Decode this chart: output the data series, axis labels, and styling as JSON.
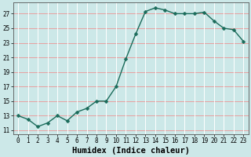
{
  "title": "",
  "xlabel": "Humidex (Indice chaleur)",
  "ylabel": "",
  "x": [
    0,
    1,
    2,
    3,
    4,
    5,
    6,
    7,
    8,
    9,
    10,
    11,
    12,
    13,
    14,
    15,
    16,
    17,
    18,
    19,
    20,
    21,
    22,
    23
  ],
  "y": [
    13.0,
    12.5,
    11.5,
    12.0,
    13.0,
    12.3,
    13.5,
    14.0,
    15.0,
    15.0,
    17.0,
    20.8,
    24.2,
    27.3,
    27.8,
    27.5,
    27.0,
    27.0,
    27.0,
    27.2,
    26.0,
    25.0,
    24.8,
    23.2
  ],
  "line_color": "#1a6b5a",
  "marker": "D",
  "marker_size": 2.5,
  "bg_color": "#cce8e8",
  "hgrid_color": "#e8a0a0",
  "vgrid_color": "#ffffff",
  "ylim": [
    10.5,
    28.5
  ],
  "xlim": [
    -0.5,
    23.5
  ],
  "yticks": [
    11,
    13,
    15,
    17,
    19,
    21,
    23,
    25,
    27
  ],
  "xticks": [
    0,
    1,
    2,
    3,
    4,
    5,
    6,
    7,
    8,
    9,
    10,
    11,
    12,
    13,
    14,
    15,
    16,
    17,
    18,
    19,
    20,
    21,
    22,
    23
  ],
  "tick_fontsize": 5.5,
  "xlabel_fontsize": 7.5,
  "line_width": 1.0
}
